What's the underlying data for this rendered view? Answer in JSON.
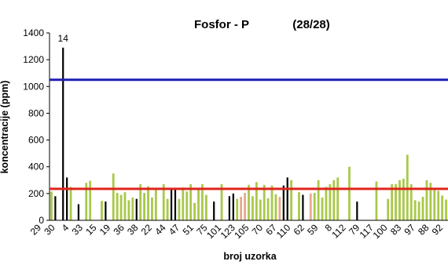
{
  "chart_data": {
    "type": "bar",
    "title": "Fosfor - P",
    "subtitle": "(28/28)",
    "xlabel": "broj uzorka",
    "ylabel": "koncentracije (ppm)",
    "ylim": [
      0,
      1400
    ],
    "yticks": [
      0,
      200,
      400,
      600,
      800,
      1000,
      1200,
      1400
    ],
    "grid": false,
    "legend": "none",
    "x_tick_labels": [
      "29",
      "30",
      "4",
      "33",
      "15",
      "19",
      "36",
      "38",
      "22",
      "44",
      "47",
      "51",
      "75",
      "101",
      "123",
      "105",
      "70",
      "67",
      "110",
      "62",
      "59",
      "8",
      "112",
      "79",
      "117",
      "100",
      "83",
      "97",
      "88",
      "92"
    ],
    "reference_lines": [
      {
        "value": 1050,
        "color": "#1f1fb4"
      },
      {
        "value": 235,
        "color": "#e0241c"
      }
    ],
    "annotations": [
      {
        "text": "14",
        "at_value": 1290
      }
    ],
    "colors": {
      "green": "#a9c84a",
      "black": "#000000",
      "pink": "#e7a98f"
    },
    "values": [
      215,
      180,
      0,
      1290,
      320,
      250,
      0,
      120,
      0,
      280,
      295,
      0,
      0,
      145,
      140,
      0,
      350,
      205,
      190,
      210,
      150,
      170,
      160,
      270,
      205,
      255,
      170,
      240,
      0,
      270,
      160,
      230,
      240,
      160,
      245,
      215,
      270,
      130,
      240,
      270,
      190,
      0,
      140,
      0,
      270,
      0,
      180,
      200,
      160,
      175,
      205,
      265,
      180,
      285,
      155,
      265,
      165,
      260,
      195,
      175,
      260,
      320,
      300,
      0,
      210,
      190,
      0,
      200,
      205,
      300,
      170,
      250,
      270,
      300,
      320,
      0,
      0,
      400,
      0,
      140,
      0,
      0,
      0,
      0,
      290,
      0,
      0,
      160,
      270,
      270,
      300,
      310,
      490,
      270,
      150,
      140,
      175,
      300,
      280,
      240,
      220,
      185,
      155
    ],
    "bar_colors": [
      "g",
      "b",
      "g",
      "b",
      "b",
      "g",
      "g",
      "b",
      "g",
      "g",
      "g",
      "g",
      "g",
      "g",
      "b",
      "g",
      "g",
      "g",
      "g",
      "g",
      "g",
      "g",
      "b",
      "g",
      "g",
      "g",
      "g",
      "g",
      "p",
      "g",
      "g",
      "b",
      "b",
      "g",
      "g",
      "g",
      "g",
      "g",
      "g",
      "g",
      "g",
      "g",
      "b",
      "g",
      "g",
      "g",
      "b",
      "b",
      "g",
      "p",
      "p",
      "g",
      "g",
      "g",
      "g",
      "g",
      "g",
      "g",
      "g",
      "p",
      "b",
      "b",
      "g",
      "g",
      "g",
      "b",
      "g",
      "p",
      "g",
      "g",
      "g",
      "g",
      "g",
      "g",
      "g",
      "g",
      "g",
      "g",
      "g",
      "b",
      "g",
      "g",
      "g",
      "g",
      "g",
      "g",
      "g",
      "g",
      "g",
      "g",
      "g",
      "g",
      "g",
      "g",
      "g",
      "g",
      "g",
      "g",
      "g",
      "g",
      "g",
      "g",
      "g"
    ]
  }
}
